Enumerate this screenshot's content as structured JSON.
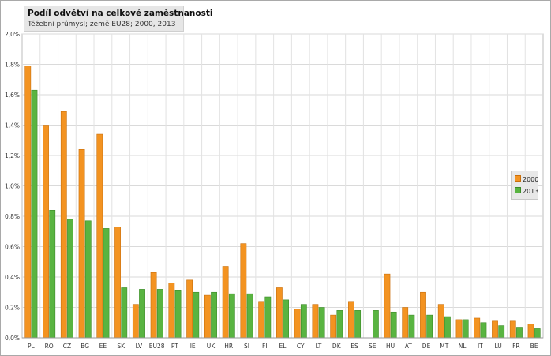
{
  "chart_data": {
    "type": "bar",
    "title": "Podíl odvětví na celkové zaměstnanosti",
    "subtitle": "Těžební průmysl; země EU28; 2000, 2013",
    "categories": [
      "PL",
      "RO",
      "CZ",
      "BG",
      "EE",
      "SK",
      "LV",
      "EU28",
      "PT",
      "IE",
      "UK",
      "HR",
      "SI",
      "FI",
      "EL",
      "CY",
      "LT",
      "DK",
      "ES",
      "SE",
      "HU",
      "AT",
      "DE",
      "MT",
      "NL",
      "IT",
      "LU",
      "FR",
      "BE"
    ],
    "series": [
      {
        "name": "2000",
        "color": "#f39321",
        "values": [
          1.79,
          1.4,
          1.49,
          1.24,
          1.34,
          0.73,
          0.22,
          0.43,
          0.36,
          0.38,
          0.28,
          0.47,
          0.62,
          0.24,
          0.33,
          0.19,
          0.22,
          0.15,
          0.24,
          null,
          0.42,
          0.2,
          0.3,
          0.22,
          0.12,
          0.13,
          0.11,
          0.11,
          0.09
        ]
      },
      {
        "name": "2013",
        "color": "#59b441",
        "values": [
          1.63,
          0.84,
          0.78,
          0.77,
          0.72,
          0.33,
          0.32,
          0.32,
          0.31,
          0.3,
          0.3,
          0.29,
          0.29,
          0.27,
          0.25,
          0.22,
          0.2,
          0.18,
          0.18,
          0.18,
          0.17,
          0.15,
          0.15,
          0.14,
          0.12,
          0.1,
          0.08,
          0.07,
          0.06
        ]
      }
    ],
    "yticks": [
      "0,0%",
      "0,2%",
      "0,4%",
      "0,6%",
      "0,8%",
      "1,0%",
      "1,2%",
      "1,4%",
      "1,6%",
      "1,8%",
      "2,0%"
    ],
    "ylim": [
      0,
      2.0
    ],
    "grid": true,
    "legend_position": "right"
  }
}
